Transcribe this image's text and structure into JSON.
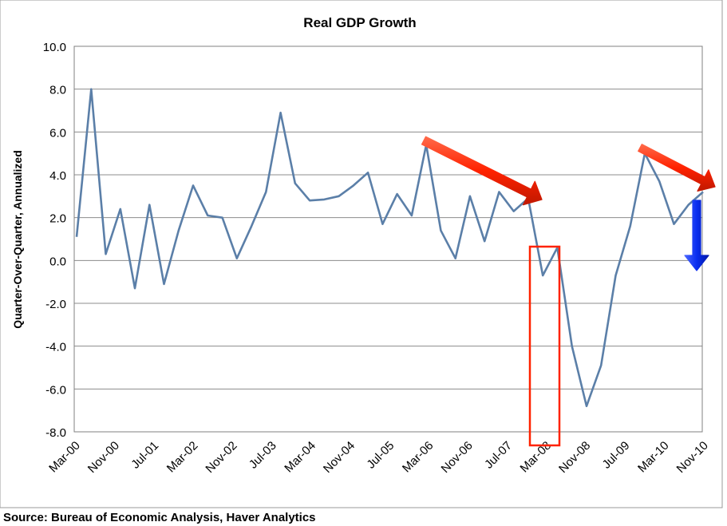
{
  "chart_data": {
    "type": "line",
    "title": "Real GDP Growth",
    "xlabel": "",
    "ylabel": "Quarter-Over-Quarter, Annualized",
    "ylim": [
      -8.0,
      10.0
    ],
    "y_ticks": [
      "-8.0",
      "-6.0",
      "-4.0",
      "-2.0",
      "0.0",
      "2.0",
      "4.0",
      "6.0",
      "8.0",
      "10.0"
    ],
    "x_tick_labels": [
      "Mar-00",
      "Nov-00",
      "Jul-01",
      "Mar-02",
      "Nov-02",
      "Jul-03",
      "Mar-04",
      "Nov-04",
      "Jul-05",
      "Mar-06",
      "Nov-06",
      "Jul-07",
      "Mar-08",
      "Nov-08",
      "Jul-09",
      "Mar-10",
      "Nov-10"
    ],
    "grid": true,
    "series": [
      {
        "name": "Real GDP Growth",
        "color": "#5b7fa8",
        "values": [
          1.1,
          8.0,
          0.3,
          2.4,
          -1.3,
          2.6,
          -1.1,
          1.4,
          3.5,
          2.1,
          2.0,
          0.1,
          1.6,
          3.2,
          6.9,
          3.6,
          2.8,
          2.85,
          3.0,
          3.5,
          4.1,
          1.7,
          3.1,
          2.1,
          5.4,
          1.4,
          0.1,
          3.0,
          0.9,
          3.2,
          2.3,
          2.9,
          -0.7,
          0.6,
          -4.0,
          -6.8,
          -4.9,
          -0.7,
          1.6,
          5.0,
          3.7,
          1.7,
          2.6,
          3.2
        ]
      }
    ],
    "annotations": {
      "arrow_color_red": "#ff2200",
      "arrow_color_blue": "#0a2ef0",
      "highlight_box_color": "#ff2200"
    }
  },
  "source": "Source:  Bureau of Economic Analysis, Haver Analytics"
}
